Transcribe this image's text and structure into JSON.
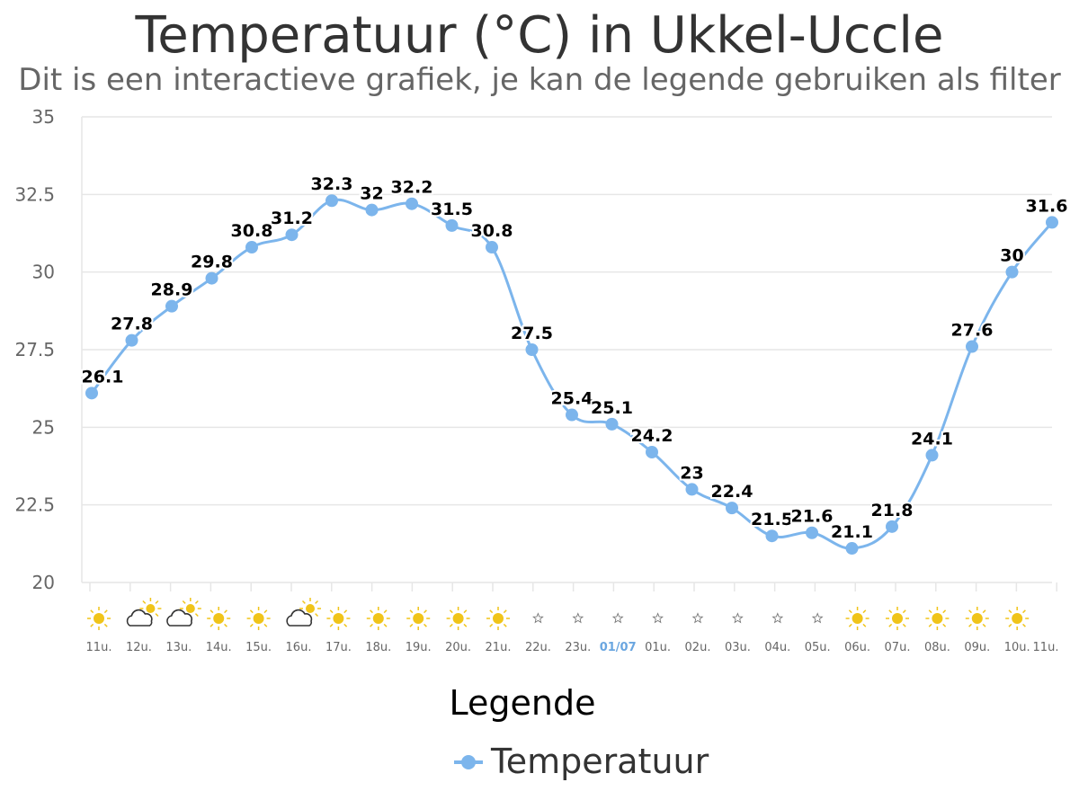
{
  "chart_data": {
    "type": "line",
    "title": "Temperatuur (°C) in Ukkel-Uccle",
    "subtitle": "Dit is een interactieve grafiek, je kan de legende gebruiken als filter",
    "xlabel": "",
    "ylabel": "",
    "ylim": [
      20,
      35
    ],
    "yticks": [
      "20",
      "22.5",
      "25",
      "27.5",
      "30",
      "32.5",
      "35"
    ],
    "grid": true,
    "categories": [
      "11u.",
      "12u.",
      "13u.",
      "14u.",
      "15u.",
      "16u.",
      "17u.",
      "18u.",
      "19u.",
      "20u.",
      "21u.",
      "22u.",
      "23u.",
      "01/07",
      "01u.",
      "02u.",
      "03u.",
      "04u.",
      "05u.",
      "06u.",
      "07u.",
      "08u.",
      "09u.",
      "10u.",
      "11u."
    ],
    "series": [
      {
        "name": "Temperatuur",
        "color": "#7cb5ec",
        "values": [
          26.1,
          27.8,
          28.9,
          29.8,
          30.8,
          31.2,
          32.3,
          32,
          32.2,
          31.5,
          30.8,
          27.5,
          25.4,
          25.1,
          24.2,
          23,
          22.4,
          21.5,
          21.6,
          21.1,
          21.8,
          24.1,
          27.6,
          30,
          31.6
        ]
      }
    ],
    "weather_icons": [
      "sun-icon",
      "partly-cloudy-icon",
      "partly-cloudy-icon",
      "sun-icon",
      "sun-icon",
      "partly-cloudy-icon",
      "sun-icon",
      "sun-icon",
      "sun-icon",
      "sun-icon",
      "sun-icon",
      "clear-night-icon",
      "clear-night-icon",
      "clear-night-icon",
      "clear-night-icon",
      "clear-night-icon",
      "clear-night-icon",
      "clear-night-icon",
      "clear-night-icon",
      "sun-icon",
      "sun-icon",
      "sun-icon",
      "sun-icon",
      "sun-icon"
    ],
    "legend": {
      "title": "Legende",
      "placement": "bottom-center",
      "items": [
        "Temperatuur"
      ]
    },
    "colors": {
      "line": "#7cb5ec",
      "grid": "#e6e6e6",
      "sun": "#f0c419",
      "cloud": "#333333"
    }
  }
}
